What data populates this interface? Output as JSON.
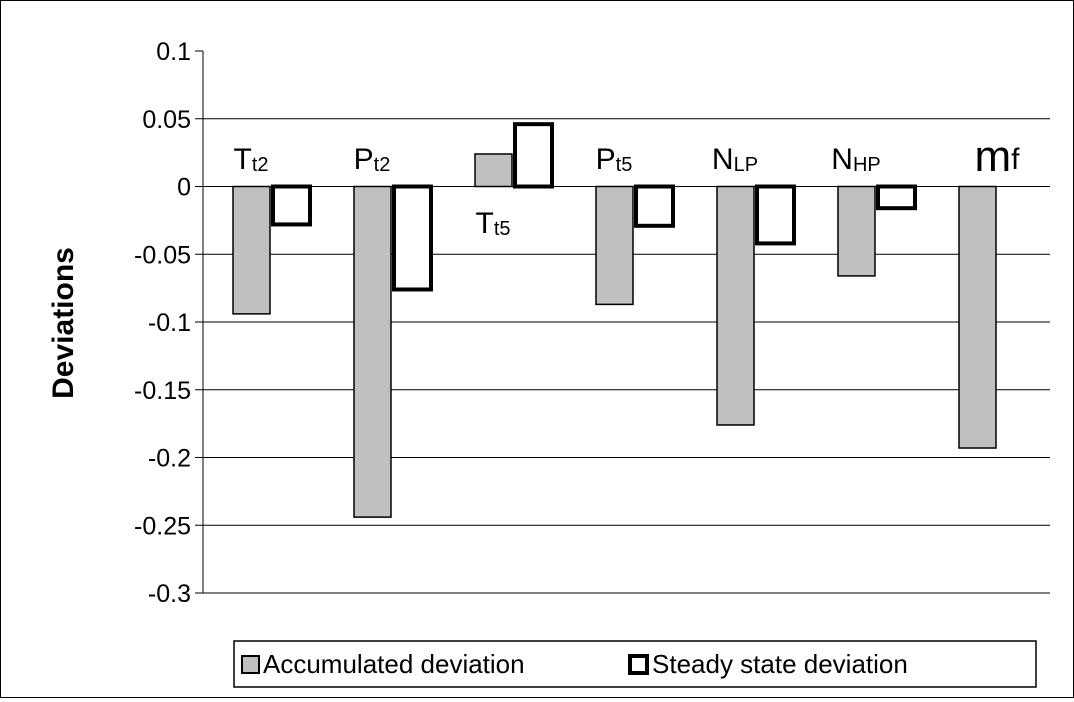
{
  "chart_data": {
    "type": "bar",
    "ylabel": "Deviations",
    "ylim": [
      -0.3,
      0.1
    ],
    "yticks": [
      0.1,
      0.05,
      0,
      -0.05,
      -0.1,
      -0.15,
      -0.2,
      -0.25,
      -0.3
    ],
    "ytick_labels": [
      "0.1",
      "0.05",
      "0",
      "-0.05",
      "-0.1",
      "-0.15",
      "-0.2",
      "-0.25",
      "-0.3"
    ],
    "grid": true,
    "legend_position": "bottom",
    "categories": [
      {
        "main": "T",
        "sub": "t2"
      },
      {
        "main": "P",
        "sub": "t2"
      },
      {
        "main": "T",
        "sub": "t5"
      },
      {
        "main": "P",
        "sub": "t5"
      },
      {
        "main": "N",
        "sub": "LP"
      },
      {
        "main": "N",
        "sub": "HP"
      },
      {
        "main": "m",
        "sub": "f"
      }
    ],
    "series": [
      {
        "name": "Accumulated deviation",
        "color": "#c0c0c0",
        "values": [
          -0.094,
          -0.244,
          0.024,
          -0.087,
          -0.176,
          -0.066,
          -0.193
        ]
      },
      {
        "name": "Steady state deviation",
        "color": "#ffffff",
        "values": [
          -0.028,
          -0.076,
          0.046,
          -0.029,
          -0.042,
          -0.016,
          0.0
        ]
      }
    ]
  }
}
